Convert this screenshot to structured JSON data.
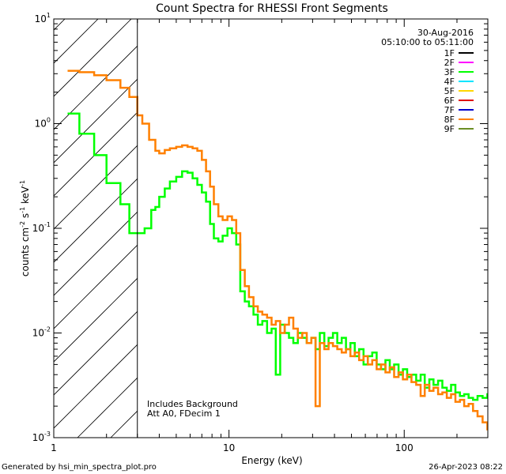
{
  "chart_data": {
    "type": "line",
    "title": "Count Spectra for RHESSI Front Segments",
    "xlabel": "Energy (keV)",
    "ylabel_parts": [
      "counts cm",
      "-2",
      " s",
      "-1",
      " keV",
      "-1"
    ],
    "xscale": "log",
    "yscale": "log",
    "xlim": [
      1,
      300
    ],
    "ylim": [
      0.001,
      10
    ],
    "x_ticks": [
      {
        "value": 1,
        "label": "1"
      },
      {
        "value": 10,
        "label": "10"
      },
      {
        "value": 100,
        "label": "100"
      }
    ],
    "y_ticks": [
      {
        "value": 0.001,
        "base": "10",
        "exp": "-3"
      },
      {
        "value": 0.01,
        "base": "10",
        "exp": "-2"
      },
      {
        "value": 0.1,
        "base": "10",
        "exp": "-1"
      },
      {
        "value": 1,
        "base": "10",
        "exp": "0"
      },
      {
        "value": 10,
        "base": "10",
        "exp": "1"
      }
    ],
    "hatched_region": [
      1,
      3
    ],
    "date": "30-Aug-2016",
    "time_range": "05:10:00 to 05:11:00",
    "legend": [
      {
        "label": "1F",
        "color": "#000000"
      },
      {
        "label": "2F",
        "color": "#ff00ff"
      },
      {
        "label": "3F",
        "color": "#00ff00"
      },
      {
        "label": "4F",
        "color": "#00e5ff"
      },
      {
        "label": "5F",
        "color": "#ffd700"
      },
      {
        "label": "6F",
        "color": "#e00000"
      },
      {
        "label": "7F",
        "color": "#0000cc"
      },
      {
        "label": "8F",
        "color": "#ff8000"
      },
      {
        "label": "9F",
        "color": "#6b8e23"
      }
    ],
    "annotations": [
      "Includes Background",
      "Att A0, FDecim 1"
    ],
    "series": [
      {
        "name": "3F",
        "color": "#00ff00",
        "points": [
          [
            1.2,
            1.25
          ],
          [
            1.4,
            0.8
          ],
          [
            1.7,
            0.5
          ],
          [
            2.0,
            0.27
          ],
          [
            2.4,
            0.17
          ],
          [
            2.7,
            0.09
          ],
          [
            3.0,
            0.09
          ],
          [
            3.3,
            0.1
          ],
          [
            3.6,
            0.15
          ],
          [
            3.8,
            0.16
          ],
          [
            4.0,
            0.2
          ],
          [
            4.3,
            0.24
          ],
          [
            4.6,
            0.28
          ],
          [
            5.0,
            0.31
          ],
          [
            5.4,
            0.35
          ],
          [
            5.8,
            0.34
          ],
          [
            6.2,
            0.3
          ],
          [
            6.6,
            0.26
          ],
          [
            7.0,
            0.22
          ],
          [
            7.4,
            0.18
          ],
          [
            7.8,
            0.11
          ],
          [
            8.2,
            0.08
          ],
          [
            8.7,
            0.075
          ],
          [
            9.2,
            0.085
          ],
          [
            9.8,
            0.1
          ],
          [
            10.4,
            0.09
          ],
          [
            11.0,
            0.07
          ],
          [
            11.6,
            0.025
          ],
          [
            12.3,
            0.02
          ],
          [
            13.0,
            0.018
          ],
          [
            13.8,
            0.015
          ],
          [
            14.6,
            0.012
          ],
          [
            15.5,
            0.013
          ],
          [
            16.5,
            0.01
          ],
          [
            17.5,
            0.011
          ],
          [
            18.5,
            0.004
          ],
          [
            19.6,
            0.012
          ],
          [
            20.8,
            0.01
          ],
          [
            22.0,
            0.009
          ],
          [
            23.3,
            0.008
          ],
          [
            24.7,
            0.01
          ],
          [
            26.2,
            0.009
          ],
          [
            27.8,
            0.008
          ],
          [
            29.5,
            0.009
          ],
          [
            31.2,
            0.007
          ],
          [
            33.0,
            0.01
          ],
          [
            35.0,
            0.0075
          ],
          [
            37.0,
            0.009
          ],
          [
            39.2,
            0.01
          ],
          [
            41.5,
            0.008
          ],
          [
            44.0,
            0.009
          ],
          [
            46.5,
            0.007
          ],
          [
            49.3,
            0.008
          ],
          [
            52.2,
            0.006
          ],
          [
            55.3,
            0.007
          ],
          [
            58.6,
            0.005
          ],
          [
            62.0,
            0.006
          ],
          [
            65.7,
            0.0065
          ],
          [
            69.6,
            0.005
          ],
          [
            73.7,
            0.0045
          ],
          [
            78.1,
            0.0055
          ],
          [
            82.7,
            0.0045
          ],
          [
            87.6,
            0.005
          ],
          [
            92.8,
            0.004
          ],
          [
            98.3,
            0.0045
          ],
          [
            104,
            0.0038
          ],
          [
            110,
            0.004
          ],
          [
            117,
            0.0035
          ],
          [
            124,
            0.004
          ],
          [
            131,
            0.003
          ],
          [
            139,
            0.0036
          ],
          [
            147,
            0.0032
          ],
          [
            156,
            0.0035
          ],
          [
            165,
            0.003
          ],
          [
            175,
            0.0028
          ],
          [
            185,
            0.0032
          ],
          [
            196,
            0.0027
          ],
          [
            208,
            0.0025
          ],
          [
            220,
            0.0026
          ],
          [
            233,
            0.0024
          ],
          [
            247,
            0.0023
          ],
          [
            262,
            0.0025
          ],
          [
            280,
            0.0024
          ],
          [
            298,
            0.0026
          ]
        ]
      },
      {
        "name": "8F",
        "color": "#ff8000",
        "points": [
          [
            1.2,
            3.2
          ],
          [
            1.4,
            3.1
          ],
          [
            1.7,
            2.9
          ],
          [
            2.0,
            2.6
          ],
          [
            2.4,
            2.2
          ],
          [
            2.7,
            1.8
          ],
          [
            3.0,
            1.2
          ],
          [
            3.2,
            1.0
          ],
          [
            3.5,
            0.7
          ],
          [
            3.8,
            0.55
          ],
          [
            4.0,
            0.52
          ],
          [
            4.3,
            0.56
          ],
          [
            4.6,
            0.58
          ],
          [
            5.0,
            0.6
          ],
          [
            5.4,
            0.62
          ],
          [
            5.8,
            0.6
          ],
          [
            6.2,
            0.58
          ],
          [
            6.6,
            0.55
          ],
          [
            7.0,
            0.45
          ],
          [
            7.4,
            0.35
          ],
          [
            7.8,
            0.25
          ],
          [
            8.2,
            0.17
          ],
          [
            8.7,
            0.13
          ],
          [
            9.2,
            0.12
          ],
          [
            9.8,
            0.13
          ],
          [
            10.4,
            0.12
          ],
          [
            11.0,
            0.09
          ],
          [
            11.6,
            0.04
          ],
          [
            12.3,
            0.028
          ],
          [
            13.0,
            0.022
          ],
          [
            13.8,
            0.018
          ],
          [
            14.6,
            0.016
          ],
          [
            15.5,
            0.015
          ],
          [
            16.5,
            0.014
          ],
          [
            17.5,
            0.012
          ],
          [
            18.5,
            0.013
          ],
          [
            19.6,
            0.01
          ],
          [
            20.8,
            0.012
          ],
          [
            22.0,
            0.014
          ],
          [
            23.3,
            0.011
          ],
          [
            24.7,
            0.009
          ],
          [
            26.2,
            0.01
          ],
          [
            27.8,
            0.008
          ],
          [
            29.5,
            0.009
          ],
          [
            31.2,
            0.002
          ],
          [
            33.0,
            0.008
          ],
          [
            35.0,
            0.007
          ],
          [
            37.0,
            0.008
          ],
          [
            39.2,
            0.0075
          ],
          [
            41.5,
            0.007
          ],
          [
            44.0,
            0.0065
          ],
          [
            46.5,
            0.007
          ],
          [
            49.3,
            0.006
          ],
          [
            52.2,
            0.0065
          ],
          [
            55.3,
            0.0055
          ],
          [
            58.6,
            0.006
          ],
          [
            62.0,
            0.005
          ],
          [
            65.7,
            0.0055
          ],
          [
            69.6,
            0.0045
          ],
          [
            73.7,
            0.005
          ],
          [
            78.1,
            0.0042
          ],
          [
            82.7,
            0.0047
          ],
          [
            87.6,
            0.0038
          ],
          [
            92.8,
            0.0042
          ],
          [
            98.3,
            0.0036
          ],
          [
            104,
            0.004
          ],
          [
            110,
            0.0034
          ],
          [
            117,
            0.0032
          ],
          [
            124,
            0.0025
          ],
          [
            131,
            0.0032
          ],
          [
            139,
            0.0028
          ],
          [
            147,
            0.003
          ],
          [
            156,
            0.0026
          ],
          [
            165,
            0.0027
          ],
          [
            175,
            0.0024
          ],
          [
            185,
            0.0026
          ],
          [
            196,
            0.0022
          ],
          [
            208,
            0.0023
          ],
          [
            220,
            0.002
          ],
          [
            233,
            0.0021
          ],
          [
            247,
            0.0018
          ],
          [
            262,
            0.0016
          ],
          [
            280,
            0.0014
          ],
          [
            298,
            0.0012
          ]
        ]
      }
    ]
  },
  "footer": {
    "generated_by": "Generated by hsi_min_spectra_plot.pro",
    "timestamp": "26-Apr-2023 08:22"
  }
}
